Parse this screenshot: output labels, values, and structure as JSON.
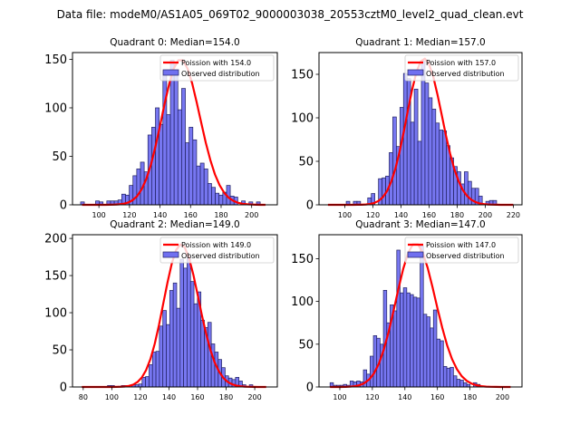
{
  "figure": {
    "suptitle": "Data file: modeM0/AS1A05_069T02_9000003038_20553cztM0_level2_quad_clean.evt"
  },
  "colors": {
    "bar_fill": "#7070f0",
    "bar_edge": "#202060",
    "poisson_line": "#ff0000"
  },
  "chart_data": [
    {
      "type": "bar",
      "title": "Quadrant 0: Median=154.0",
      "xlabel": "",
      "ylabel": "",
      "xlim": [
        82.7,
        216.8
      ],
      "ylim": [
        0,
        157
      ],
      "xticks": [
        100,
        120,
        140,
        160,
        180,
        200
      ],
      "yticks": [
        0,
        50,
        100,
        150
      ],
      "legend": {
        "placement": "top-right",
        "entries": [
          "Poission with 154.0",
          "Observed distribution"
        ]
      },
      "poisson_mean": 154.0,
      "poisson_peak": 150,
      "bin_start": 88,
      "bin_width": 2.45,
      "values": [
        3,
        0,
        0,
        0,
        4,
        3,
        0,
        4,
        4,
        4,
        5,
        11,
        10,
        20,
        30,
        37,
        44,
        34,
        72,
        80,
        100,
        83,
        138,
        93,
        149,
        138,
        98,
        120,
        64,
        80,
        67,
        40,
        43,
        37,
        22,
        18,
        12,
        10,
        13,
        20,
        9,
        8,
        0,
        4,
        0,
        3,
        0,
        3
      ]
    },
    {
      "type": "bar",
      "title": "Quadrant 1: Median=157.0",
      "xlabel": "",
      "ylabel": "",
      "xlim": [
        81.6,
        226.2
      ],
      "ylim": [
        0,
        175
      ],
      "xticks": [
        100,
        120,
        140,
        160,
        180,
        200,
        220
      ],
      "yticks": [
        0,
        50,
        100,
        150
      ],
      "legend": {
        "placement": "top-right",
        "entries": [
          "Poission with 157.0",
          "Observed distribution"
        ]
      },
      "poisson_mean": 157.0,
      "poisson_peak": 168,
      "bin_start": 101,
      "bin_width": 2.55,
      "values": [
        4,
        0,
        4,
        4,
        0,
        0,
        8,
        13,
        0,
        30,
        31,
        33,
        60,
        101,
        67,
        112,
        151,
        145,
        95,
        133,
        73,
        165,
        140,
        123,
        110,
        94,
        86,
        85,
        68,
        54,
        44,
        38,
        24,
        38,
        27,
        19,
        19,
        10,
        0,
        4,
        5,
        5
      ]
    },
    {
      "type": "bar",
      "title": "Quadrant 2: Median=149.0",
      "xlabel": "",
      "ylabel": "",
      "xlim": [
        72.5,
        215.8
      ],
      "ylim": [
        0,
        205
      ],
      "xticks": [
        80,
        100,
        120,
        140,
        160,
        180,
        200
      ],
      "yticks": [
        0,
        50,
        100,
        150,
        200
      ],
      "legend": {
        "placement": "top-right",
        "entries": [
          "Poission with 149.0",
          "Observed distribution"
        ]
      },
      "poisson_mean": 149.0,
      "poisson_peak": 192,
      "bin_start": 97,
      "bin_width": 2.42,
      "values": [
        2,
        2,
        0,
        1,
        2,
        2,
        0,
        3,
        3,
        4,
        13,
        14,
        30,
        47,
        48,
        82,
        103,
        84,
        130,
        140,
        106,
        172,
        160,
        175,
        142,
        112,
        128,
        90,
        80,
        87,
        58,
        47,
        37,
        26,
        15,
        12,
        10,
        13,
        8,
        3,
        0,
        3
      ]
    },
    {
      "type": "bar",
      "title": "Quadrant 3: Median=147.0",
      "xlabel": "",
      "ylabel": "",
      "xlim": [
        87.2,
        212.0
      ],
      "ylim": [
        0,
        178
      ],
      "xticks": [
        100,
        120,
        140,
        160,
        180,
        200
      ],
      "yticks": [
        0,
        50,
        100,
        150
      ],
      "legend": {
        "placement": "top-right",
        "entries": [
          "Poission with 147.0",
          "Observed distribution"
        ]
      },
      "poisson_mean": 147.0,
      "poisson_peak": 168,
      "bin_start": 94,
      "bin_width": 2.05,
      "values": [
        5,
        2,
        2,
        2,
        3,
        2,
        7,
        6,
        7,
        6,
        20,
        15,
        36,
        60,
        57,
        50,
        113,
        75,
        96,
        89,
        160,
        110,
        116,
        110,
        108,
        105,
        104,
        165,
        85,
        82,
        69,
        90,
        56,
        54,
        24,
        22,
        23,
        13,
        9,
        8,
        5,
        3,
        0,
        5,
        3,
        0
      ]
    }
  ]
}
